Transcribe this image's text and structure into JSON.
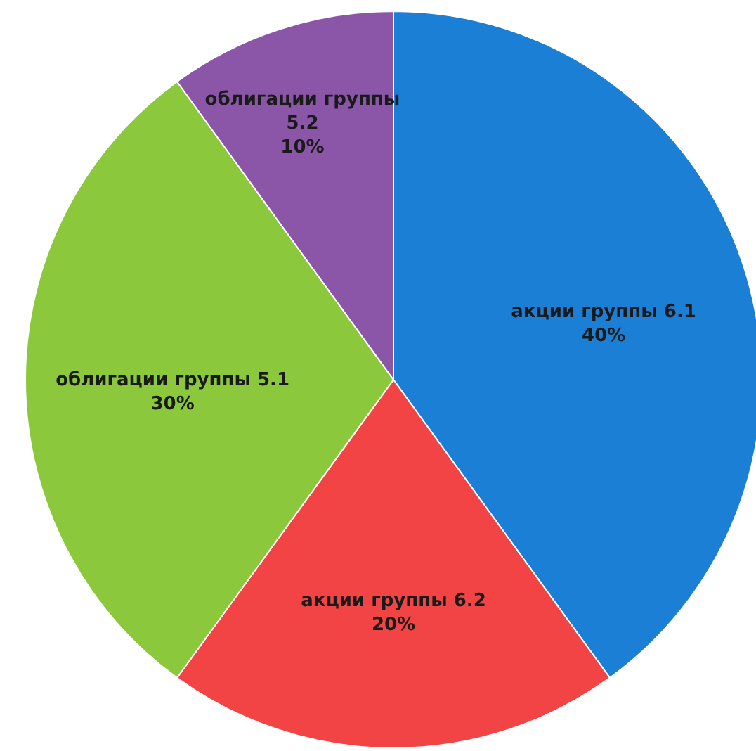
{
  "chart_data": {
    "type": "pie",
    "categories": [
      "акции группы 6.1",
      "акции группы 6.2",
      "облигации группы 5.1",
      "облигации группы 5.2"
    ],
    "values": [
      40,
      20,
      30,
      10
    ],
    "value_labels": [
      "40%",
      "20%",
      "30%",
      "10%"
    ],
    "colors": [
      "#1b7fd6",
      "#f24444",
      "#8cc83c",
      "#8c56a8"
    ],
    "legend": false
  }
}
